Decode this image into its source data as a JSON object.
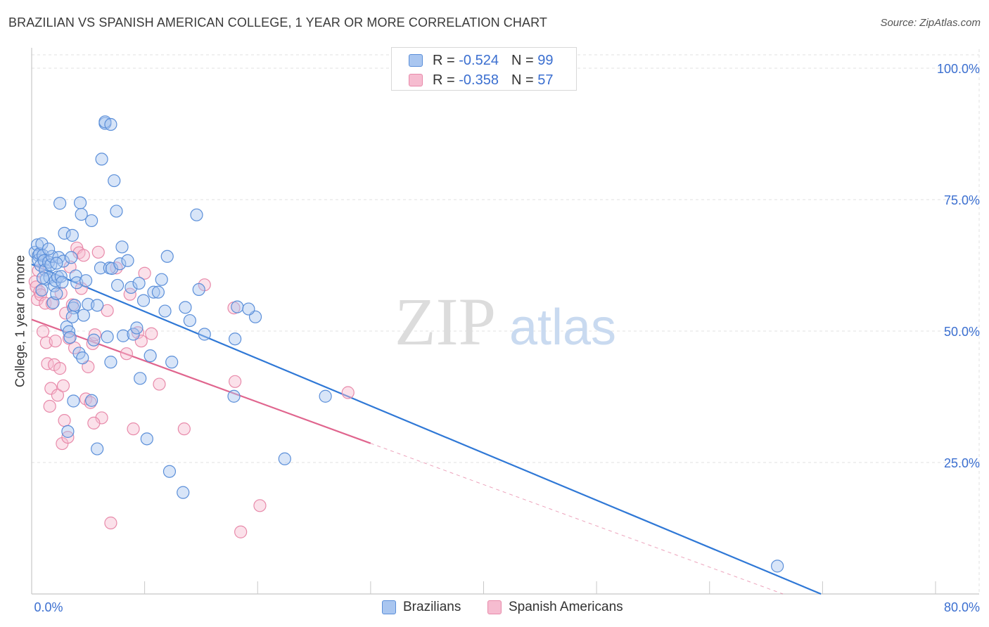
{
  "title": "BRAZILIAN VS SPANISH AMERICAN COLLEGE, 1 YEAR OR MORE CORRELATION CHART",
  "source": "Source: ZipAtlas.com",
  "watermark": {
    "zip": "ZIP",
    "atlas": "atlas"
  },
  "colors": {
    "blue_fill": "#a9c6f0",
    "blue_stroke": "#5b8fd9",
    "blue_line": "#2f78d6",
    "pink_fill": "#f6bcd0",
    "pink_stroke": "#e88aaa",
    "pink_line": "#e0658e",
    "tick_label": "#3b6fd0",
    "grid": "#e2e2e2"
  },
  "legend": {
    "row1": {
      "r_label": "R = ",
      "r_value": "-0.524",
      "n_label": "N = ",
      "n_value": "99"
    },
    "row2": {
      "r_label": "R = ",
      "r_value": "-0.358",
      "n_label": "N = ",
      "n_value": "57"
    }
  },
  "bottom_legend": {
    "series1": "Brazilians",
    "series2": "Spanish Americans"
  },
  "chart_data": {
    "type": "scatter",
    "title": "BRAZILIAN VS SPANISH AMERICAN COLLEGE, 1 YEAR OR MORE CORRELATION CHART",
    "xlabel": "",
    "ylabel": "College, 1 year or more",
    "xlim": [
      0,
      80
    ],
    "ylim": [
      0,
      100
    ],
    "x_tick_labels": [
      {
        "value": 0,
        "label": "0.0%"
      },
      {
        "value": 80,
        "label": "80.0%"
      }
    ],
    "y_tick_labels": [
      {
        "value": 100,
        "label": "100.0%"
      },
      {
        "value": 75,
        "label": "75.0%"
      },
      {
        "value": 50,
        "label": "50.0%"
      },
      {
        "value": 25,
        "label": "25.0%"
      }
    ],
    "series": [
      {
        "name": "Brazilians",
        "color": "blue",
        "r": -0.524,
        "n": 99,
        "trend": {
          "x0": 0,
          "y0": 62.7,
          "x1": 80,
          "y1": -9.1,
          "solid_to": 80
        },
        "points": [
          [
            0.3,
            65.0
          ],
          [
            0.5,
            66.4
          ],
          [
            0.6,
            64.4
          ],
          [
            0.6,
            63.5
          ],
          [
            0.7,
            64.7
          ],
          [
            0.8,
            62.5
          ],
          [
            0.9,
            66.6
          ],
          [
            1.0,
            64.4
          ],
          [
            1.1,
            63.4
          ],
          [
            1.2,
            61.6
          ],
          [
            1.3,
            59.9
          ],
          [
            1.5,
            63.1
          ],
          [
            1.6,
            60.2
          ],
          [
            1.7,
            62.6
          ],
          [
            1.8,
            64.2
          ],
          [
            1.9,
            55.4
          ],
          [
            2.0,
            58.6
          ],
          [
            2.1,
            59.6
          ],
          [
            2.2,
            57.1
          ],
          [
            2.3,
            60.3
          ],
          [
            2.4,
            64.0
          ],
          [
            2.5,
            74.3
          ],
          [
            2.6,
            60.4
          ],
          [
            2.7,
            59.3
          ],
          [
            2.8,
            63.3
          ],
          [
            2.9,
            68.6
          ],
          [
            3.1,
            50.8
          ],
          [
            3.3,
            49.9
          ],
          [
            3.4,
            48.8
          ],
          [
            3.5,
            64.0
          ],
          [
            3.6,
            68.2
          ],
          [
            3.7,
            54.4
          ],
          [
            3.8,
            54.9
          ],
          [
            3.9,
            60.5
          ],
          [
            4.0,
            59.2
          ],
          [
            4.2,
            45.8
          ],
          [
            4.3,
            74.4
          ],
          [
            4.4,
            72.2
          ],
          [
            4.5,
            44.9
          ],
          [
            4.6,
            53.0
          ],
          [
            4.8,
            59.6
          ],
          [
            5.0,
            55.1
          ],
          [
            5.3,
            71.0
          ],
          [
            5.5,
            48.3
          ],
          [
            5.8,
            54.9
          ],
          [
            6.1,
            62.0
          ],
          [
            6.2,
            82.7
          ],
          [
            6.5,
            89.5
          ],
          [
            6.7,
            48.9
          ],
          [
            6.9,
            62.0
          ],
          [
            7.0,
            44.1
          ],
          [
            7.1,
            61.9
          ],
          [
            7.3,
            78.6
          ],
          [
            7.5,
            72.8
          ],
          [
            7.6,
            58.7
          ],
          [
            7.8,
            62.8
          ],
          [
            8.0,
            66.0
          ],
          [
            8.1,
            49.1
          ],
          [
            8.5,
            63.4
          ],
          [
            8.8,
            58.3
          ],
          [
            9.0,
            49.4
          ],
          [
            9.3,
            50.6
          ],
          [
            9.6,
            41.0
          ],
          [
            9.9,
            55.8
          ],
          [
            10.2,
            29.5
          ],
          [
            10.5,
            45.3
          ],
          [
            10.8,
            57.4
          ],
          [
            11.2,
            57.4
          ],
          [
            11.5,
            59.8
          ],
          [
            11.8,
            53.8
          ],
          [
            12.0,
            64.2
          ],
          [
            12.2,
            23.3
          ],
          [
            12.4,
            44.1
          ],
          [
            13.4,
            19.3
          ],
          [
            13.6,
            54.5
          ],
          [
            14.0,
            52.0
          ],
          [
            14.6,
            72.1
          ],
          [
            14.8,
            57.9
          ],
          [
            15.3,
            49.4
          ],
          [
            18.0,
            48.5
          ],
          [
            17.9,
            37.6
          ],
          [
            18.2,
            54.6
          ],
          [
            19.8,
            52.7
          ],
          [
            19.2,
            54.2
          ],
          [
            22.4,
            25.7
          ],
          [
            26.0,
            37.6
          ],
          [
            66.0,
            5.3
          ],
          [
            3.7,
            36.7
          ],
          [
            5.3,
            36.8
          ],
          [
            3.2,
            30.9
          ],
          [
            5.8,
            27.6
          ],
          [
            2.2,
            62.9
          ],
          [
            3.6,
            52.7
          ],
          [
            0.9,
            57.8
          ],
          [
            1.5,
            65.6
          ],
          [
            1.0,
            60.1
          ],
          [
            9.5,
            59.1
          ],
          [
            6.5,
            89.8
          ],
          [
            7.0,
            89.3
          ]
        ]
      },
      {
        "name": "Spanish Americans",
        "color": "pink",
        "r": -0.358,
        "n": 57,
        "trend": {
          "x0": 0,
          "y0": 52.2,
          "x1": 80,
          "y1": -10.6,
          "solid_to": 30
        },
        "points": [
          [
            0.3,
            59.4
          ],
          [
            0.4,
            58.4
          ],
          [
            0.5,
            56.0
          ],
          [
            0.6,
            61.5
          ],
          [
            0.7,
            57.5
          ],
          [
            0.8,
            56.9
          ],
          [
            1.0,
            49.9
          ],
          [
            1.2,
            55.3
          ],
          [
            1.3,
            47.8
          ],
          [
            1.4,
            43.8
          ],
          [
            1.6,
            35.7
          ],
          [
            1.7,
            39.1
          ],
          [
            1.8,
            55.2
          ],
          [
            2.0,
            43.6
          ],
          [
            2.1,
            48.1
          ],
          [
            2.3,
            37.8
          ],
          [
            2.5,
            42.9
          ],
          [
            2.7,
            28.6
          ],
          [
            2.8,
            39.6
          ],
          [
            2.9,
            33.0
          ],
          [
            3.0,
            53.4
          ],
          [
            3.2,
            29.8
          ],
          [
            3.3,
            48.6
          ],
          [
            3.4,
            62.2
          ],
          [
            3.6,
            55.0
          ],
          [
            3.8,
            46.8
          ],
          [
            4.0,
            65.8
          ],
          [
            4.2,
            64.9
          ],
          [
            4.4,
            58.1
          ],
          [
            4.6,
            64.4
          ],
          [
            4.8,
            37.1
          ],
          [
            5.0,
            43.2
          ],
          [
            5.2,
            36.4
          ],
          [
            5.4,
            47.6
          ],
          [
            5.6,
            49.3
          ],
          [
            5.9,
            65.0
          ],
          [
            6.2,
            33.5
          ],
          [
            6.7,
            53.9
          ],
          [
            7.0,
            13.5
          ],
          [
            7.5,
            62.0
          ],
          [
            8.4,
            45.7
          ],
          [
            8.7,
            57.0
          ],
          [
            9.0,
            31.4
          ],
          [
            9.4,
            49.7
          ],
          [
            9.7,
            48.1
          ],
          [
            10.0,
            61.0
          ],
          [
            10.6,
            49.5
          ],
          [
            11.3,
            39.9
          ],
          [
            13.5,
            31.4
          ],
          [
            15.3,
            58.8
          ],
          [
            17.9,
            54.4
          ],
          [
            18.0,
            40.4
          ],
          [
            18.5,
            11.8
          ],
          [
            20.2,
            16.8
          ],
          [
            28.0,
            38.3
          ],
          [
            5.5,
            32.5
          ],
          [
            2.6,
            57.2
          ]
        ]
      }
    ]
  }
}
